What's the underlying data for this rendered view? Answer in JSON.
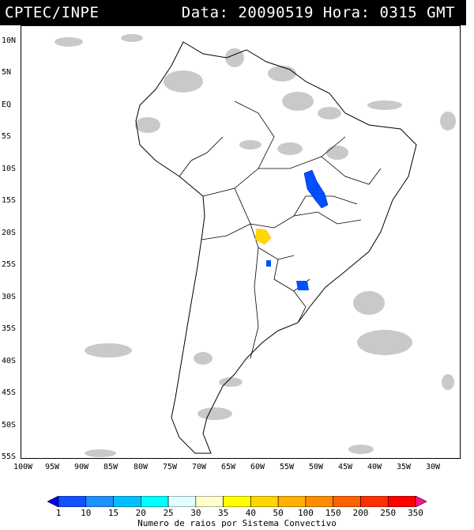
{
  "header": {
    "source": "CPTEC/INPE",
    "datetime": "Data: 20090519 Hora: 0315 GMT"
  },
  "map": {
    "lat_labels": [
      "10N",
      "5N",
      "EQ",
      "5S",
      "10S",
      "15S",
      "20S",
      "25S",
      "30S",
      "35S",
      "40S",
      "45S",
      "50S",
      "55S"
    ],
    "lon_labels": [
      "100W",
      "95W",
      "90W",
      "85W",
      "80W",
      "75W",
      "70W",
      "65W",
      "60W",
      "55W",
      "50W",
      "45W",
      "40W",
      "35W",
      "30W"
    ]
  },
  "colorbar": {
    "labels": [
      "1",
      "10",
      "15",
      "20",
      "25",
      "30",
      "35",
      "40",
      "50",
      "100",
      "150",
      "200",
      "250",
      "350"
    ],
    "colors": [
      "#0000ff",
      "#1050ff",
      "#1e90ff",
      "#00bfff",
      "#00ffff",
      "#e0ffff",
      "#ffffcc",
      "#ffff00",
      "#ffd700",
      "#ffb000",
      "#ff8c00",
      "#ff6000",
      "#ff3000",
      "#ff0000",
      "#ff1493"
    ],
    "caption": "Numero de raios por Sistema Convectivo"
  }
}
